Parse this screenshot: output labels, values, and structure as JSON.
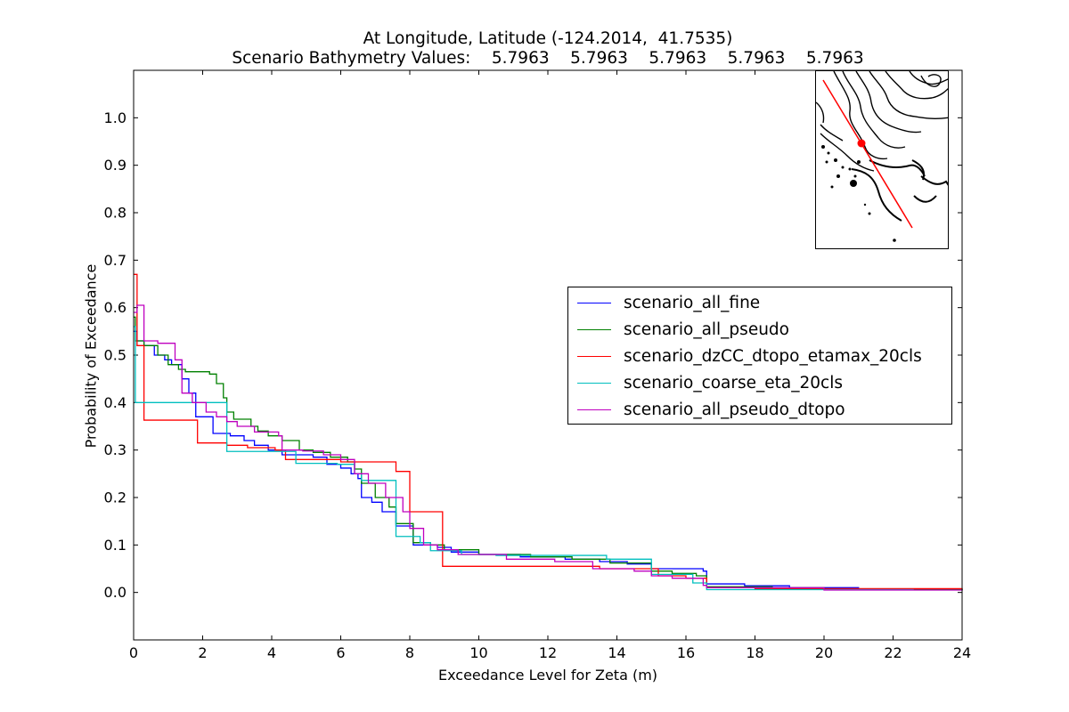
{
  "chart_data": {
    "type": "line",
    "title_line1": "At Longitude, Latitude (-124.2014,  41.7535)",
    "title_line2": "Scenario Bathymetry Values:    5.7963    5.7963    5.7963    5.7963    5.7963",
    "xlabel": "Exceedance Level for Zeta (m)",
    "ylabel": "Probability of Exceedance",
    "xlim": [
      0,
      24
    ],
    "ylim": [
      -0.1,
      1.1
    ],
    "xticks": [
      0,
      2,
      4,
      6,
      8,
      10,
      12,
      14,
      16,
      18,
      20,
      22,
      24
    ],
    "yticks": [
      0.0,
      0.1,
      0.2,
      0.3,
      0.4,
      0.5,
      0.6,
      0.7,
      0.8,
      0.9,
      1.0
    ],
    "ytick_labels": [
      "0.0",
      "0.1",
      "0.2",
      "0.3",
      "0.4",
      "0.5",
      "0.6",
      "0.7",
      "0.8",
      "0.9",
      "1.0"
    ],
    "legend_position": "center-right",
    "series": [
      {
        "name": "scenario_all_fine",
        "color": "#0000ff",
        "points": [
          [
            0,
            0.55
          ],
          [
            0.1,
            0.53
          ],
          [
            0.3,
            0.52
          ],
          [
            0.6,
            0.5
          ],
          [
            0.9,
            0.49
          ],
          [
            1.1,
            0.48
          ],
          [
            1.4,
            0.45
          ],
          [
            1.6,
            0.42
          ],
          [
            1.8,
            0.37
          ],
          [
            2.2,
            0.37
          ],
          [
            2.3,
            0.335
          ],
          [
            2.8,
            0.33
          ],
          [
            3.2,
            0.32
          ],
          [
            3.5,
            0.31
          ],
          [
            3.9,
            0.3
          ],
          [
            4.3,
            0.29
          ],
          [
            4.8,
            0.29
          ],
          [
            5.2,
            0.285
          ],
          [
            5.6,
            0.27
          ],
          [
            6.0,
            0.262
          ],
          [
            6.3,
            0.25
          ],
          [
            6.5,
            0.24
          ],
          [
            6.6,
            0.2
          ],
          [
            6.9,
            0.19
          ],
          [
            7.2,
            0.17
          ],
          [
            7.6,
            0.14
          ],
          [
            8.1,
            0.1
          ],
          [
            8.8,
            0.095
          ],
          [
            9.2,
            0.085
          ],
          [
            10.0,
            0.08
          ],
          [
            11.2,
            0.075
          ],
          [
            12.5,
            0.07
          ],
          [
            13.5,
            0.065
          ],
          [
            14.3,
            0.06
          ],
          [
            15.0,
            0.05
          ],
          [
            16.5,
            0.045
          ],
          [
            16.6,
            0.018
          ],
          [
            17.7,
            0.014
          ],
          [
            19.0,
            0.01
          ],
          [
            21.0,
            0.006
          ],
          [
            24,
            0.004
          ]
        ]
      },
      {
        "name": "scenario_all_pseudo",
        "color": "#008000",
        "points": [
          [
            0,
            0.58
          ],
          [
            0.05,
            0.53
          ],
          [
            0.3,
            0.52
          ],
          [
            0.7,
            0.5
          ],
          [
            1.0,
            0.48
          ],
          [
            1.3,
            0.47
          ],
          [
            1.5,
            0.465
          ],
          [
            2.2,
            0.46
          ],
          [
            2.4,
            0.44
          ],
          [
            2.6,
            0.41
          ],
          [
            2.7,
            0.38
          ],
          [
            2.9,
            0.365
          ],
          [
            3.4,
            0.35
          ],
          [
            3.6,
            0.34
          ],
          [
            3.9,
            0.33
          ],
          [
            4.3,
            0.32
          ],
          [
            4.8,
            0.3
          ],
          [
            5.2,
            0.295
          ],
          [
            5.7,
            0.285
          ],
          [
            6.2,
            0.275
          ],
          [
            6.4,
            0.26
          ],
          [
            6.6,
            0.23
          ],
          [
            7.0,
            0.2
          ],
          [
            7.4,
            0.18
          ],
          [
            7.6,
            0.145
          ],
          [
            8.1,
            0.105
          ],
          [
            8.6,
            0.1
          ],
          [
            9.0,
            0.09
          ],
          [
            10.0,
            0.08
          ],
          [
            11.5,
            0.075
          ],
          [
            12.7,
            0.07
          ],
          [
            13.8,
            0.062
          ],
          [
            15.0,
            0.045
          ],
          [
            15.6,
            0.04
          ],
          [
            16.3,
            0.035
          ],
          [
            16.6,
            0.012
          ],
          [
            18.5,
            0.01
          ],
          [
            20.0,
            0.007
          ],
          [
            24,
            0.005
          ]
        ]
      },
      {
        "name": "scenario_dzCC_dtopo_etamax_20cls",
        "color": "#ff0000",
        "points": [
          [
            0,
            0.67
          ],
          [
            0.1,
            0.52
          ],
          [
            0.3,
            0.363
          ],
          [
            1.85,
            0.315
          ],
          [
            2.7,
            0.31
          ],
          [
            3.3,
            0.305
          ],
          [
            4.1,
            0.3
          ],
          [
            4.4,
            0.28
          ],
          [
            6.0,
            0.275
          ],
          [
            7.6,
            0.255
          ],
          [
            8.0,
            0.17
          ],
          [
            8.95,
            0.055
          ],
          [
            10.5,
            0.055
          ],
          [
            13.5,
            0.05
          ],
          [
            15.2,
            0.035
          ],
          [
            16.0,
            0.03
          ],
          [
            16.6,
            0.01
          ],
          [
            18.0,
            0.008
          ],
          [
            24,
            0.004
          ]
        ]
      },
      {
        "name": "scenario_coarse_eta_20cls",
        "color": "#00bfbf",
        "points": [
          [
            0,
            0.56
          ],
          [
            0.05,
            0.4
          ],
          [
            2.7,
            0.297
          ],
          [
            4.3,
            0.297
          ],
          [
            4.7,
            0.272
          ],
          [
            5.9,
            0.27
          ],
          [
            6.4,
            0.25
          ],
          [
            6.6,
            0.236
          ],
          [
            7.6,
            0.118
          ],
          [
            8.3,
            0.105
          ],
          [
            8.6,
            0.088
          ],
          [
            9.5,
            0.08
          ],
          [
            10.5,
            0.078
          ],
          [
            13.7,
            0.07
          ],
          [
            15.0,
            0.038
          ],
          [
            16.2,
            0.02
          ],
          [
            16.6,
            0.006
          ],
          [
            22.6,
            0.006
          ]
        ]
      },
      {
        "name": "scenario_all_pseudo_dtopo",
        "color": "#bf00bf",
        "points": [
          [
            0,
            0.59
          ],
          [
            0.1,
            0.605
          ],
          [
            0.3,
            0.53
          ],
          [
            0.7,
            0.525
          ],
          [
            1.2,
            0.49
          ],
          [
            1.4,
            0.42
          ],
          [
            1.7,
            0.4
          ],
          [
            2.1,
            0.38
          ],
          [
            2.4,
            0.37
          ],
          [
            2.7,
            0.36
          ],
          [
            3.0,
            0.35
          ],
          [
            3.5,
            0.338
          ],
          [
            4.2,
            0.33
          ],
          [
            4.3,
            0.3
          ],
          [
            4.9,
            0.298
          ],
          [
            5.5,
            0.29
          ],
          [
            6.0,
            0.28
          ],
          [
            6.4,
            0.25
          ],
          [
            6.8,
            0.23
          ],
          [
            7.3,
            0.2
          ],
          [
            7.8,
            0.17
          ],
          [
            8.0,
            0.135
          ],
          [
            8.4,
            0.1
          ],
          [
            8.8,
            0.09
          ],
          [
            9.4,
            0.08
          ],
          [
            10.8,
            0.07
          ],
          [
            12.2,
            0.065
          ],
          [
            13.3,
            0.05
          ],
          [
            14.5,
            0.045
          ],
          [
            15.0,
            0.035
          ],
          [
            15.6,
            0.03
          ],
          [
            16.5,
            0.015
          ],
          [
            16.6,
            0.01
          ],
          [
            20.0,
            0.005
          ],
          [
            24,
            0.005
          ]
        ]
      }
    ]
  }
}
